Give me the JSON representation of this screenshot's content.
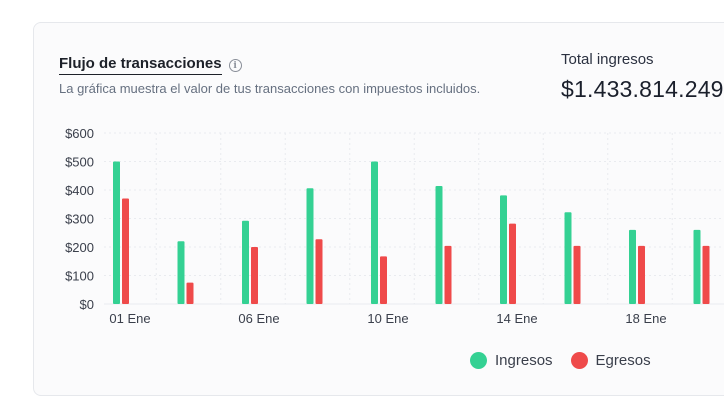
{
  "card": {
    "title": "Flujo de transacciones",
    "subtitle": "La gráfica muestra el valor de tus transacciones con impuestos incluidos.",
    "total_label": "Total ingresos",
    "total_value": "$1.433.814.249"
  },
  "colors": {
    "ingresos": "#34d193",
    "egresos": "#ef4a4a",
    "grid": "#e9ebef"
  },
  "chart_data": {
    "type": "bar",
    "categories": [
      "01 Ene",
      "",
      "06 Ene",
      "",
      "10 Ene",
      "",
      "14 Ene",
      "",
      "18 Ene",
      ""
    ],
    "series": [
      {
        "name": "Ingresos",
        "values": [
          500,
          220,
          292,
          406,
          500,
          414,
          381,
          322,
          260,
          260
        ]
      },
      {
        "name": "Egresos",
        "values": [
          370,
          75,
          200,
          227,
          167,
          204,
          282,
          204,
          204,
          204
        ]
      }
    ],
    "y_ticks": [
      "$0",
      "$100",
      "$200",
      "$300",
      "$400",
      "$500",
      "$600"
    ],
    "ylim": [
      0,
      600
    ],
    "grid": true,
    "legend_position": "bottom-right"
  }
}
